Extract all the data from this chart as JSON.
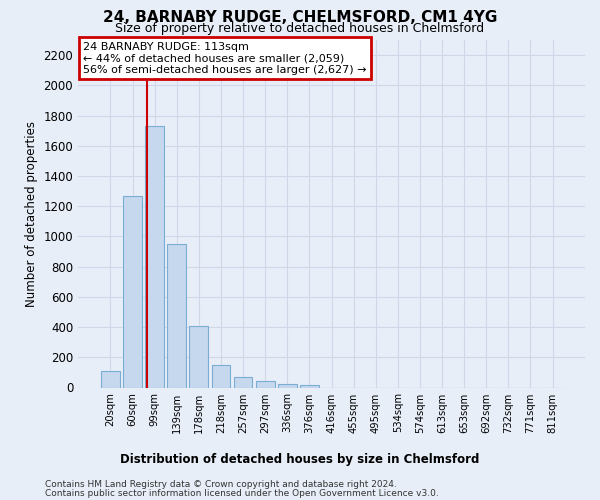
{
  "title": "24, BARNABY RUDGE, CHELMSFORD, CM1 4YG",
  "subtitle": "Size of property relative to detached houses in Chelmsford",
  "xlabel": "Distribution of detached houses by size in Chelmsford",
  "ylabel": "Number of detached properties",
  "bar_color": "#c5d8ee",
  "bar_edge_color": "#7aadd4",
  "categories": [
    "20sqm",
    "60sqm",
    "99sqm",
    "139sqm",
    "178sqm",
    "218sqm",
    "257sqm",
    "297sqm",
    "336sqm",
    "376sqm",
    "416sqm",
    "455sqm",
    "495sqm",
    "534sqm",
    "574sqm",
    "613sqm",
    "653sqm",
    "692sqm",
    "732sqm",
    "771sqm",
    "811sqm"
  ],
  "values": [
    110,
    1270,
    1730,
    950,
    410,
    150,
    70,
    40,
    25,
    15,
    0,
    0,
    0,
    0,
    0,
    0,
    0,
    0,
    0,
    0,
    0
  ],
  "ylim": [
    0,
    2300
  ],
  "yticks": [
    0,
    200,
    400,
    600,
    800,
    1000,
    1200,
    1400,
    1600,
    1800,
    2000,
    2200
  ],
  "vline_color": "#cc0000",
  "vline_x": 1.65,
  "annotation_line1": "24 BARNABY RUDGE: 113sqm",
  "annotation_line2": "← 44% of detached houses are smaller (2,059)",
  "annotation_line3": "56% of semi-detached houses are larger (2,627) →",
  "annotation_box_color": "#ffffff",
  "annotation_box_edge": "#cc0000",
  "bg_color": "#e8eef8",
  "grid_color": "#d0d8e8",
  "footer1": "Contains HM Land Registry data © Crown copyright and database right 2024.",
  "footer2": "Contains public sector information licensed under the Open Government Licence v3.0."
}
